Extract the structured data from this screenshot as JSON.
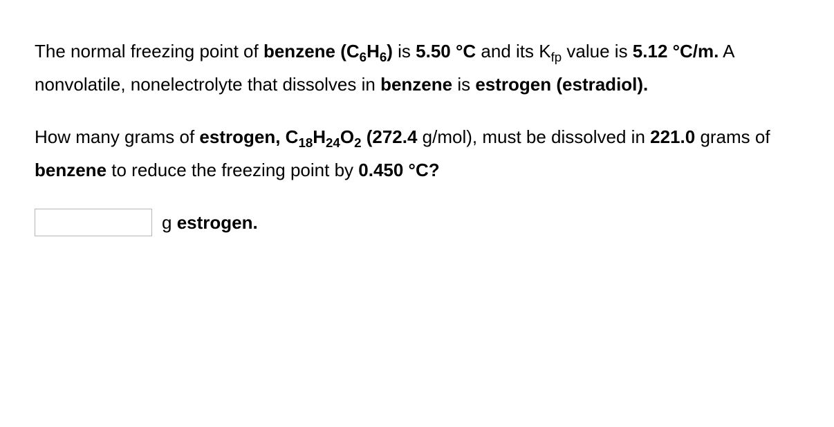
{
  "para1": {
    "t1": "The normal freezing point of ",
    "solvent": "benzene (C",
    "solvent_sub1": "6",
    "solvent_mid": "H",
    "solvent_sub2": "6",
    "solvent_close": ")",
    "t2": " is ",
    "fp": "5.50 °C",
    "t3": " and its K",
    "kfp_sub": "fp",
    "t4": " value is ",
    "kfp_val": "5.12 °C/m.",
    "t5": " A nonvolatile, nonelectrolyte that dissolves in ",
    "solvent2": "benzene",
    "t6": " is ",
    "solute": "estrogen (estradiol).",
    "t7": ""
  },
  "para2": {
    "q1": "How many grams of ",
    "solute_name": "estrogen, C",
    "s1": "18",
    "mid1": "H",
    "s2": "24",
    "mid2": "O",
    "s3": "2",
    "open_paren": " (272.4",
    "q2": " g/mol), must be dissolved in ",
    "mass": "221.0",
    "q3": " grams of ",
    "solvent": "benzene",
    "q4": " to reduce the freezing point by ",
    "dt": "0.450 °C?"
  },
  "answer": {
    "unit_prefix": "g ",
    "unit_label": "estrogen."
  }
}
